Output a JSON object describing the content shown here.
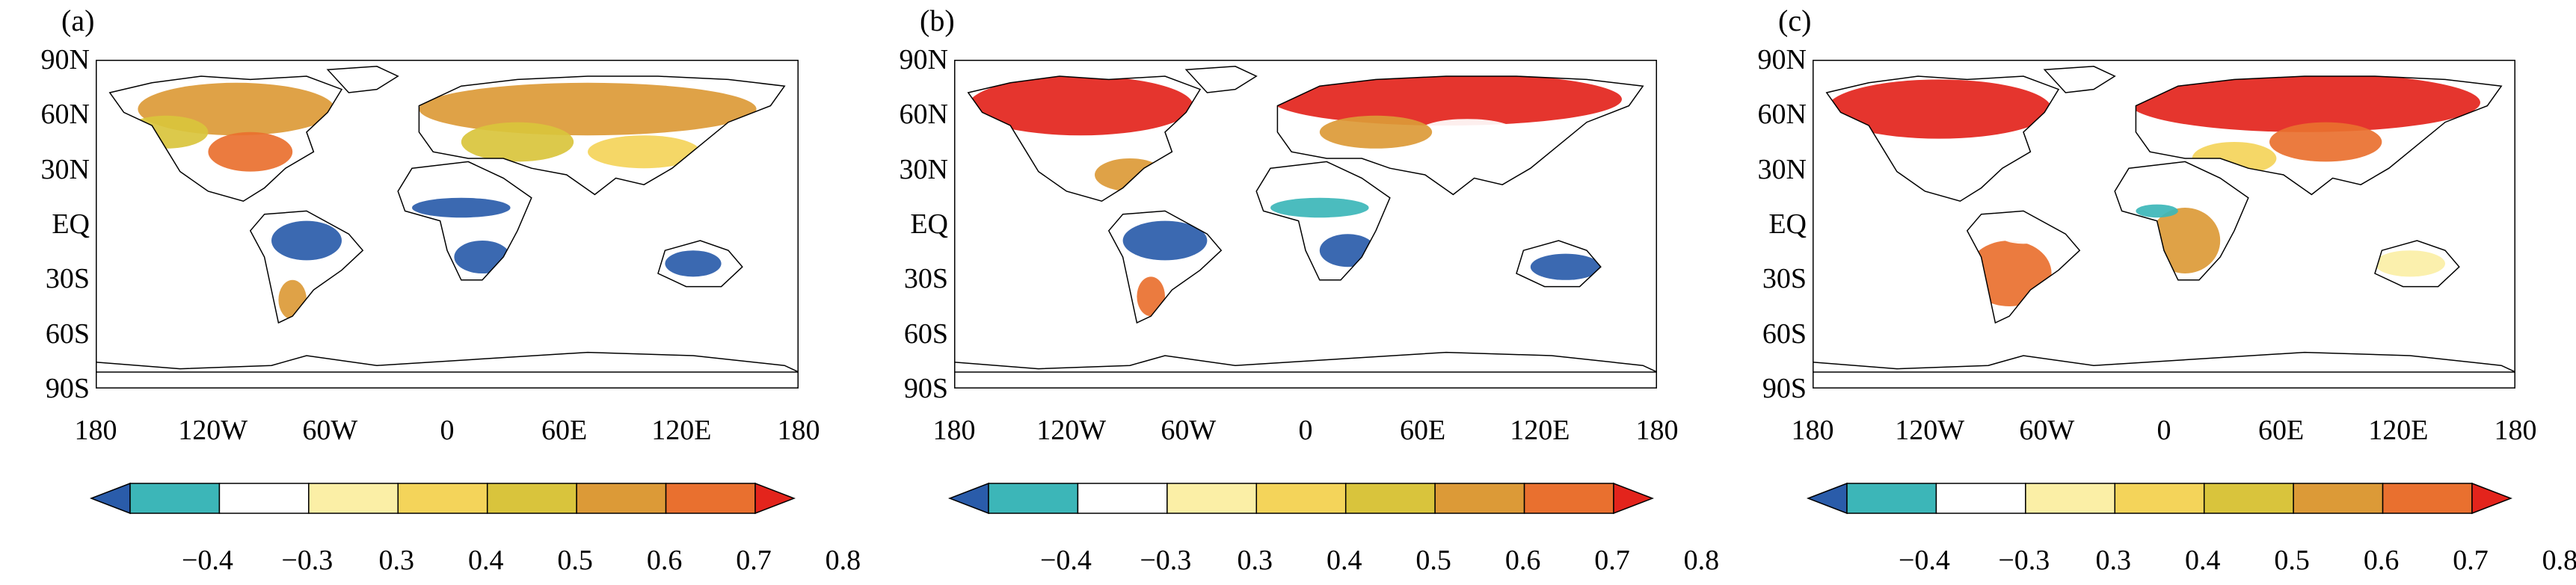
{
  "panels": [
    {
      "label": "(a)",
      "id": "a"
    },
    {
      "label": "(b)",
      "id": "b"
    },
    {
      "label": "(c)",
      "id": "c"
    }
  ],
  "lat_labels": [
    "90N",
    "60N",
    "30N",
    "EQ",
    "30S",
    "60S",
    "90S"
  ],
  "lon_labels": [
    "180",
    "120W",
    "60W",
    "0",
    "60E",
    "120E",
    "180"
  ],
  "colorbar": {
    "labels": [
      "−0.4",
      "−0.3",
      "0.3",
      "0.4",
      "0.5",
      "0.6",
      "0.7",
      "0.8"
    ],
    "colors": [
      "#2a5caa",
      "#3cb6b8",
      "#ffffff",
      "#fbefa6",
      "#f4d45a",
      "#d9c43c",
      "#dc9a37",
      "#e9702f",
      "#e3241c"
    ]
  }
}
